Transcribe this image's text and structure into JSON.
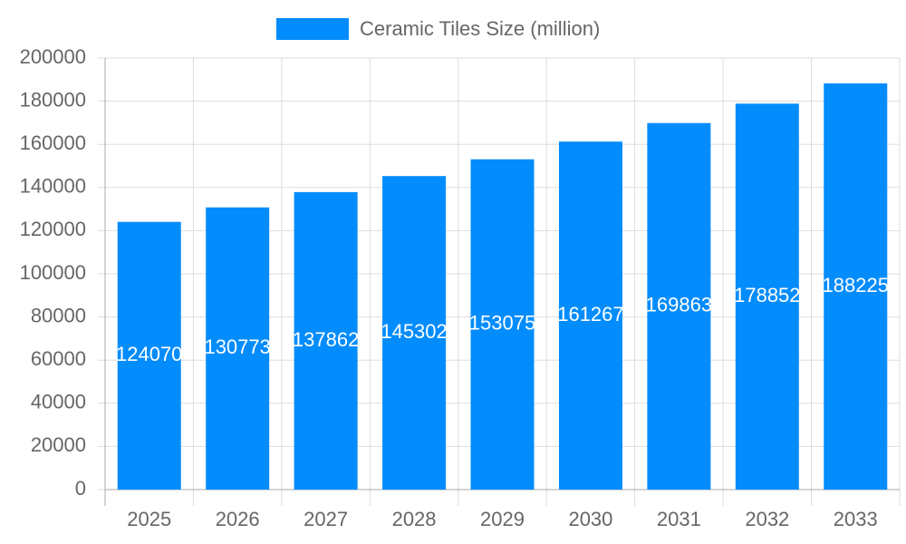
{
  "chart_data": {
    "type": "bar",
    "categories": [
      "2025",
      "2026",
      "2027",
      "2028",
      "2029",
      "2030",
      "2031",
      "2032",
      "2033"
    ],
    "series": [
      {
        "name": "Ceramic Tiles Size (million)",
        "color": "#038cfc",
        "values": [
          124070,
          130773,
          137862,
          145302,
          153075,
          161267,
          169863,
          178852,
          188225
        ]
      }
    ],
    "ylim": [
      0,
      200000
    ],
    "yticks": [
      0,
      20000,
      40000,
      60000,
      80000,
      100000,
      120000,
      140000,
      160000,
      180000,
      200000
    ],
    "grid": true,
    "legend": "top"
  }
}
